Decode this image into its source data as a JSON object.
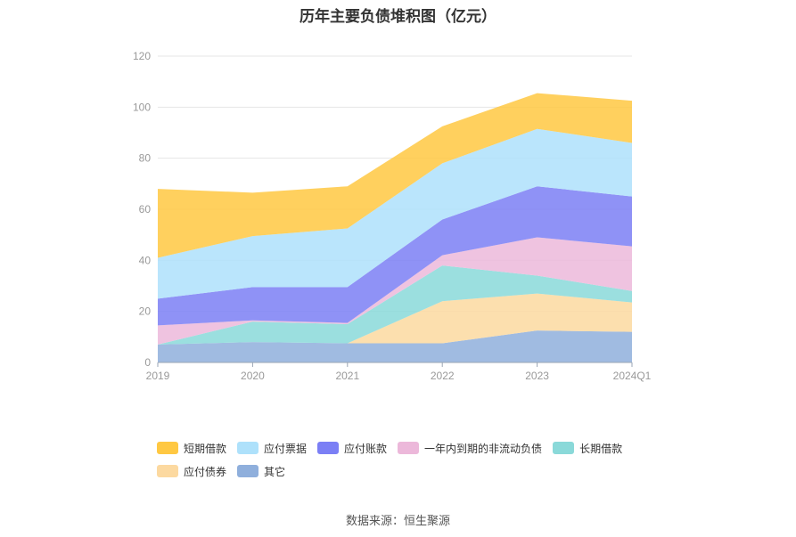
{
  "chart_data": {
    "type": "area",
    "stacked": true,
    "title": "历年主要负债堆积图（亿元）",
    "source": "数据来源：恒生聚源",
    "categories": [
      "2019",
      "2020",
      "2021",
      "2022",
      "2023",
      "2024Q1"
    ],
    "ylim": [
      0,
      120
    ],
    "yticks": [
      0,
      20,
      40,
      60,
      80,
      100,
      120
    ],
    "grid": true,
    "legend_position": "bottom",
    "series": [
      {
        "name": "其它",
        "color": "#8fafdc",
        "values": [
          7.0,
          8.0,
          7.5,
          7.5,
          12.5,
          12.0
        ]
      },
      {
        "name": "应付债券",
        "color": "#fcd9a0",
        "values": [
          0.0,
          0.0,
          0.0,
          16.5,
          14.5,
          11.5
        ]
      },
      {
        "name": "长期借款",
        "color": "#8ad9d9",
        "values": [
          0.0,
          8.0,
          7.5,
          14.0,
          7.0,
          4.5
        ]
      },
      {
        "name": "一年内到期的非流动负债",
        "color": "#ecb8da",
        "values": [
          7.5,
          0.5,
          0.5,
          4.0,
          15.0,
          17.5
        ]
      },
      {
        "name": "应付账款",
        "color": "#7b7ff5",
        "values": [
          10.5,
          13.0,
          14.0,
          14.0,
          20.0,
          19.5
        ]
      },
      {
        "name": "应付票据",
        "color": "#aee1fb",
        "values": [
          16.0,
          20.0,
          23.0,
          22.0,
          22.5,
          21.0
        ]
      },
      {
        "name": "短期借款",
        "color": "#ffc842",
        "values": [
          27.0,
          17.0,
          16.5,
          14.5,
          14.0,
          16.5
        ]
      }
    ],
    "legend_order": [
      "短期借款",
      "应付票据",
      "应付账款",
      "一年内到期的非流动负债",
      "长期借款",
      "应付债券",
      "其它"
    ]
  }
}
